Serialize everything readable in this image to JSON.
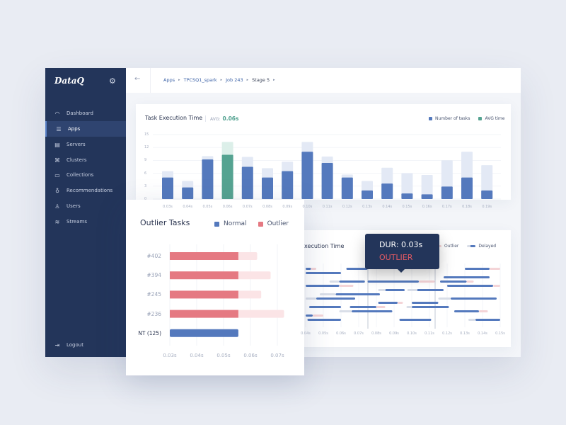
{
  "app": {
    "logo": "DataQ",
    "settings_icon": "gear-icon"
  },
  "sidebar": {
    "items": [
      {
        "label": "Dashboard",
        "icon": "gauge-icon",
        "glyph": "◠"
      },
      {
        "label": "Apps",
        "icon": "apps-icon",
        "glyph": "☰",
        "active": true
      },
      {
        "label": "Servers",
        "icon": "database-icon",
        "glyph": "▤"
      },
      {
        "label": "Clusters",
        "icon": "cluster-icon",
        "glyph": "⌘"
      },
      {
        "label": "Collections",
        "icon": "folder-icon",
        "glyph": "▭"
      },
      {
        "label": "Recommendations",
        "icon": "lightbulb-icon",
        "glyph": "♁"
      },
      {
        "label": "Users",
        "icon": "user-icon",
        "glyph": "♙"
      },
      {
        "label": "Streams",
        "icon": "streams-icon",
        "glyph": "≋"
      }
    ],
    "logout": {
      "label": "Logout",
      "icon": "logout-icon",
      "glyph": "⇥"
    }
  },
  "breadcrumb": [
    "Apps",
    "TPCSQ1_spark",
    "Job 243",
    "Stage 5"
  ],
  "colors": {
    "primary": "#5479bd",
    "avg": "#55a391",
    "outlier": "#e57982",
    "sidebar": "#23355a"
  },
  "chart_data": [
    {
      "type": "bar",
      "title": "Task Execution Time",
      "avg_label": "AVG:",
      "avg_value": "0.06s",
      "legend": [
        "Number of tasks",
        "AVG time"
      ],
      "yticks": [
        0,
        3,
        6,
        9,
        12,
        15
      ],
      "ylim": [
        0,
        15
      ],
      "categories": [
        "0.03s",
        "0.04s",
        "0.05s",
        "0.06s",
        "0.07s",
        "0.08s",
        "0.09s",
        "0.10s",
        "0.11s",
        "0.12s",
        "0.13s",
        "0.14s",
        "0.15s",
        "0.16s",
        "0.17s",
        "0.18s",
        "0.19s"
      ],
      "series": [
        {
          "name": "Number of tasks",
          "values": [
            5,
            2.7,
            9.2,
            10.3,
            7.5,
            5,
            6.5,
            11,
            8.4,
            5,
            2,
            3.6,
            1.3,
            1.1,
            2.9,
            5,
            2
          ]
        },
        {
          "values": [
            6.5,
            4.2,
            10,
            13.3,
            9.8,
            7.2,
            8.7,
            13.3,
            9.9,
            5.7,
            4.2,
            7.3,
            6,
            5.6,
            9,
            11,
            7.9
          ]
        }
      ],
      "highlight_category": "0.06s"
    },
    {
      "type": "gantt",
      "title": "Execution Time",
      "legend": [
        "Outlier",
        "Delayed"
      ],
      "xticks": [
        "0.04s",
        "0.05s",
        "0.06s",
        "0.07s",
        "0.08s",
        "0.09s",
        "0.10s",
        "0.11s",
        "0.12s",
        "0.13s",
        "0.14s",
        "0.15s"
      ],
      "segments": [
        [
          0,
          0.04,
          0.043,
          "n"
        ],
        [
          0,
          0.043,
          0.046,
          "o"
        ],
        [
          0,
          0.063,
          0.075,
          "n"
        ],
        [
          0,
          0.13,
          0.144,
          "n"
        ],
        [
          0,
          0.144,
          0.15,
          "o"
        ],
        [
          1,
          0.04,
          0.06,
          "n"
        ],
        [
          2,
          0.118,
          0.144,
          "n"
        ],
        [
          3,
          0.0535,
          0.059,
          "d"
        ],
        [
          3,
          0.059,
          0.0735,
          "n"
        ],
        [
          3,
          0.075,
          0.104,
          "n"
        ],
        [
          3,
          0.104,
          0.113,
          "o"
        ],
        [
          3,
          0.116,
          0.131,
          "n"
        ],
        [
          3,
          0.131,
          0.135,
          "o"
        ],
        [
          4,
          0.04,
          0.059,
          "n"
        ],
        [
          4,
          0.059,
          0.067,
          "o"
        ],
        [
          4,
          0.12,
          0.146,
          "n"
        ],
        [
          4,
          0.146,
          0.15,
          "o"
        ],
        [
          5,
          0.081,
          0.085,
          "d"
        ],
        [
          5,
          0.085,
          0.096,
          "n"
        ],
        [
          5,
          0.0975,
          0.103,
          "d"
        ],
        [
          5,
          0.103,
          0.118,
          "n"
        ],
        [
          6,
          0.048,
          0.057,
          "d"
        ],
        [
          6,
          0.057,
          0.082,
          "n"
        ],
        [
          7,
          0.04,
          0.046,
          "d"
        ],
        [
          7,
          0.046,
          0.068,
          "n"
        ],
        [
          7,
          0.115,
          0.122,
          "d"
        ],
        [
          7,
          0.122,
          0.148,
          "n"
        ],
        [
          8,
          0.081,
          0.092,
          "n"
        ],
        [
          8,
          0.092,
          0.095,
          "o"
        ],
        [
          8,
          0.1,
          0.115,
          "n"
        ],
        [
          9,
          0.042,
          0.06,
          "n"
        ],
        [
          9,
          0.065,
          0.08,
          "n"
        ],
        [
          9,
          0.08,
          0.085,
          "o"
        ],
        [
          9,
          0.097,
          0.1,
          "d"
        ],
        [
          9,
          0.1,
          0.121,
          "n"
        ],
        [
          10,
          0.059,
          0.066,
          "d"
        ],
        [
          10,
          0.066,
          0.089,
          "n"
        ],
        [
          10,
          0.124,
          0.138,
          "n"
        ],
        [
          10,
          0.138,
          0.143,
          "o"
        ],
        [
          11,
          0.04,
          0.044,
          "n"
        ],
        [
          11,
          0.044,
          0.05,
          "o"
        ],
        [
          12,
          0.041,
          0.06,
          "n"
        ],
        [
          12,
          0.093,
          0.111,
          "n"
        ],
        [
          12,
          0.132,
          0.136,
          "d"
        ],
        [
          12,
          0.136,
          0.15,
          "n"
        ]
      ]
    },
    {
      "type": "bar",
      "orientation": "horizontal",
      "title": "Outlier Tasks",
      "legend": [
        "Normal",
        "Outlier"
      ],
      "xticks": [
        "0.03s",
        "0.04s",
        "0.05s",
        "0.06s",
        "0.07s"
      ],
      "xlim": [
        0.03,
        0.07
      ],
      "categories": [
        "#402",
        "#394",
        "#245",
        "#236",
        "NT (125)"
      ],
      "normal_duration": 0.0555,
      "totals": [
        0.0625,
        0.0675,
        0.064,
        0.0725,
        0.0555
      ]
    }
  ],
  "tooltip": {
    "dur": "DUR: 0.03s",
    "label": "OUTLIER"
  }
}
